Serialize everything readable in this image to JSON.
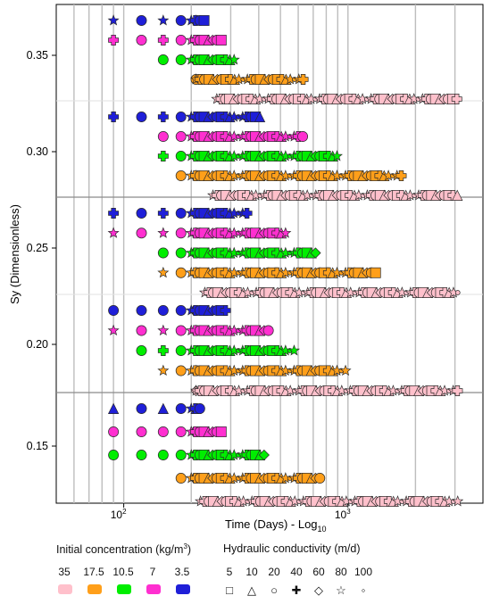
{
  "chart_data": {
    "type": "scatter",
    "title": "",
    "xlabel": "Time (Days) - Log",
    "xlabel_sub": "10",
    "ylabel": "Sy (Dimensionless)",
    "x_scale": "log",
    "xlim": [
      50,
      4000
    ],
    "x_ticks": [
      {
        "value": 100,
        "base": "10",
        "exp": "2"
      },
      {
        "value": 1000,
        "base": "10",
        "exp": "3"
      }
    ],
    "y_ticks": [
      "0.35",
      "0.30",
      "0.25",
      "0.20",
      "0.15"
    ],
    "grid": true,
    "legend_concentration": {
      "title": "Initial concentration (kg/m",
      "title_sup": "3",
      "title_end": ")",
      "entries": [
        {
          "label": "35",
          "color": "#ffc0cb"
        },
        {
          "label": "17.5",
          "color": "#ff9f1a"
        },
        {
          "label": "10.5",
          "color": "#00ee00"
        },
        {
          "label": "7",
          "color": "#ff2fd0"
        },
        {
          "label": "3.5",
          "color": "#1f1fd8"
        }
      ]
    },
    "legend_conductivity": {
      "title": "Hydraulic conductivity (m/d)",
      "entries": [
        {
          "label": "5",
          "shape": "square"
        },
        {
          "label": "10",
          "shape": "triangle"
        },
        {
          "label": "20",
          "shape": "circle"
        },
        {
          "label": "40",
          "shape": "cross"
        },
        {
          "label": "60",
          "shape": "diamond"
        },
        {
          "label": "80",
          "shape": "star"
        },
        {
          "label": "100",
          "shape": "small-circle"
        }
      ]
    },
    "series_groups": [
      {
        "sy": 0.35,
        "rows": [
          {
            "concentration": "3.5",
            "start": 90,
            "end": 230
          },
          {
            "concentration": "7",
            "start": 90,
            "end": 280
          },
          {
            "concentration": "10.5",
            "start": 150,
            "end": 320
          },
          {
            "concentration": "17.5",
            "start": 210,
            "end": 640
          },
          {
            "concentration": "35",
            "start": 260,
            "end": 3100
          }
        ]
      },
      {
        "sy": 0.3,
        "rows": [
          {
            "concentration": "3.5",
            "start": 90,
            "end": 410
          },
          {
            "concentration": "7",
            "start": 150,
            "end": 640
          },
          {
            "concentration": "10.5",
            "start": 150,
            "end": 900
          },
          {
            "concentration": "17.5",
            "start": 170,
            "end": 1780
          },
          {
            "concentration": "35",
            "start": 250,
            "end": 3100
          }
        ]
      },
      {
        "sy": 0.25,
        "rows": [
          {
            "concentration": "3.5",
            "start": 90,
            "end": 360
          },
          {
            "concentration": "7",
            "start": 90,
            "end": 540
          },
          {
            "concentration": "10.5",
            "start": 150,
            "end": 730
          },
          {
            "concentration": "17.5",
            "start": 150,
            "end": 1340
          },
          {
            "concentration": "35",
            "start": 230,
            "end": 3100
          }
        ]
      },
      {
        "sy": 0.2,
        "rows": [
          {
            "concentration": "3.5",
            "start": 90,
            "end": 290
          },
          {
            "concentration": "7",
            "start": 90,
            "end": 460
          },
          {
            "concentration": "10.5",
            "start": 120,
            "end": 580
          },
          {
            "concentration": "17.5",
            "start": 150,
            "end": 980
          },
          {
            "concentration": "35",
            "start": 210,
            "end": 3100
          }
        ]
      },
      {
        "sy": 0.15,
        "rows": [
          {
            "concentration": "3.5",
            "start": 90,
            "end": 225
          },
          {
            "concentration": "7",
            "start": 90,
            "end": 280
          },
          {
            "concentration": "10.5",
            "start": 90,
            "end": 440
          },
          {
            "concentration": "17.5",
            "start": 180,
            "end": 770
          },
          {
            "concentration": "35",
            "start": 220,
            "end": 3100
          }
        ]
      }
    ]
  }
}
